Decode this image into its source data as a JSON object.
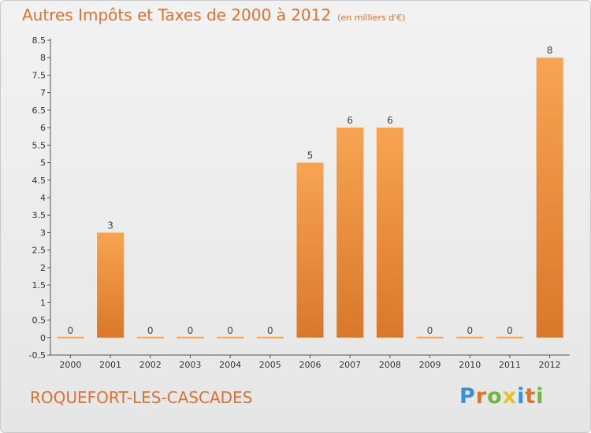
{
  "title": "Autres Impôts et Taxes de 2000 à 2012",
  "unit_label": "(en milliers d'€)",
  "commune": "ROQUEFORT-LES-CASCADES",
  "logo": {
    "letters": [
      "P",
      "r",
      "o",
      "x",
      "i",
      "t",
      "i"
    ],
    "colors": [
      "#3a8fd6",
      "#e0712f",
      "#6fb83f",
      "#e8c21e",
      "#3a8fd6",
      "#e0712f",
      "#6fb83f"
    ]
  },
  "colors": {
    "accent": "#e0712f",
    "bar_top": "#f7a452",
    "bar_bottom": "#d9782a"
  },
  "chart_data": {
    "type": "bar",
    "categories": [
      "2000",
      "2001",
      "2002",
      "2003",
      "2004",
      "2005",
      "2006",
      "2007",
      "2008",
      "2009",
      "2010",
      "2011",
      "2012"
    ],
    "values": [
      0,
      3,
      0,
      0,
      0,
      0,
      5,
      6,
      6,
      0,
      0,
      0,
      8
    ],
    "data_labels": [
      "0",
      "3",
      "0",
      "0",
      "0",
      "0",
      "5",
      "6",
      "6",
      "0",
      "0",
      "0",
      "8"
    ],
    "ylim": [
      -0.5,
      8.5
    ],
    "yticks": [
      "-0.5",
      "0",
      "0.5",
      "1",
      "1.5",
      "2",
      "2.5",
      "3",
      "3.5",
      "4",
      "4.5",
      "5",
      "5.5",
      "6",
      "6.5",
      "7",
      "7.5",
      "8",
      "8.5"
    ],
    "grid": false
  }
}
